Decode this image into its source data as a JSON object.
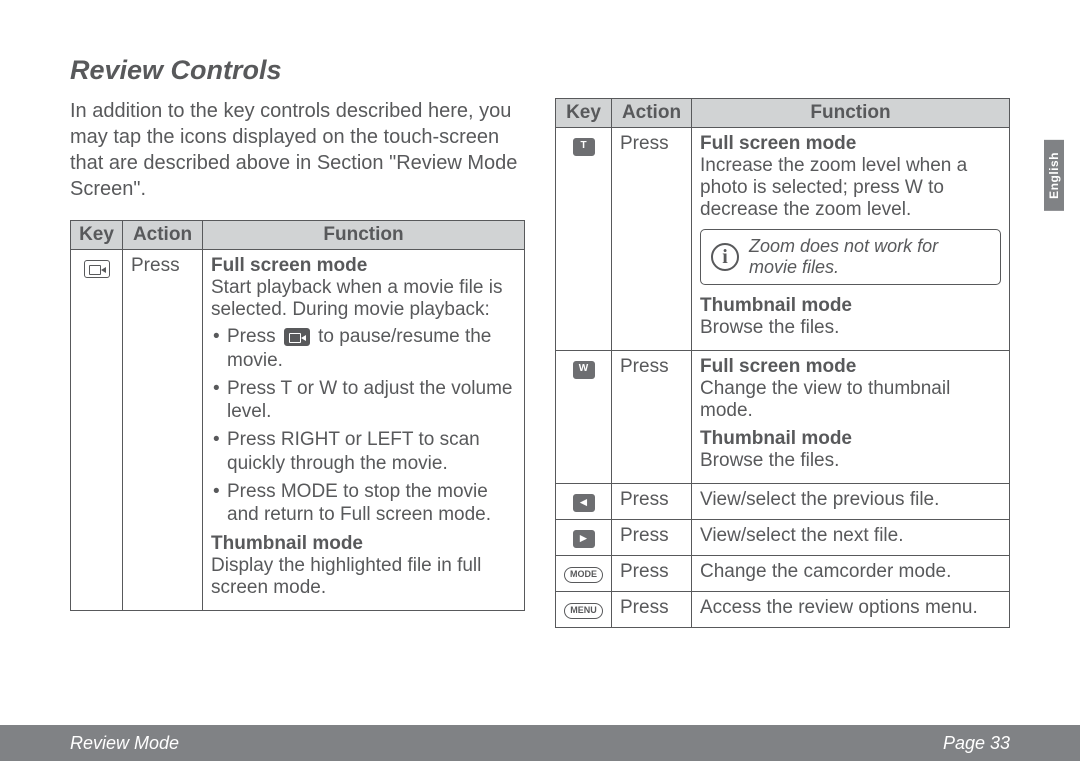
{
  "title": "Review Controls",
  "intro": "In addition to the key controls described here, you may tap the icons displayed on the touch-screen that are described above in Section \"Review Mode Screen\".",
  "headers": {
    "key": "Key",
    "action": "Action",
    "function": "Function"
  },
  "left_rows": [
    {
      "icon": "cam",
      "action": "Press",
      "blocks": [
        {
          "title": "Full screen mode",
          "text": "Start playback when a movie file is selected. During movie playback:",
          "bullets": [
            {
              "pre": "Press ",
              "icon": "cam-dark",
              "post": " to pause/resume the movie."
            },
            {
              "text": "Press T or W to adjust the volume level."
            },
            {
              "text": "Press RIGHT or LEFT to scan quickly through the movie."
            },
            {
              "text": "Press MODE to stop the movie and return to Full screen mode."
            }
          ]
        },
        {
          "title": "Thumbnail mode",
          "text": "Display the highlighted file in full screen mode."
        }
      ]
    }
  ],
  "right_rows": [
    {
      "icon": "T",
      "icon_style": "dark",
      "action": "Press",
      "blocks": [
        {
          "title": "Full screen mode",
          "text": "Increase the zoom level when a photo is selected; press W to decrease the zoom level.",
          "note": "Zoom does not work for movie files."
        },
        {
          "title": "Thumbnail mode",
          "text": "Browse the files."
        }
      ]
    },
    {
      "icon": "W",
      "icon_style": "dark",
      "action": "Press",
      "blocks": [
        {
          "title": "Full screen mode",
          "text": "Change the view to thumbnail mode."
        },
        {
          "title": "Thumbnail mode",
          "text": "Browse the files."
        }
      ]
    },
    {
      "icon": "◄",
      "icon_style": "arrow dark",
      "action": "Press",
      "blocks": [
        {
          "text": "View/select the previous file."
        }
      ]
    },
    {
      "icon": "►",
      "icon_style": "arrow dark",
      "action": "Press",
      "blocks": [
        {
          "text": "View/select the next file."
        }
      ]
    },
    {
      "icon": "MODE",
      "icon_style": "pill",
      "action": "Press",
      "blocks": [
        {
          "text": "Change the camcorder mode."
        }
      ]
    },
    {
      "icon": "MENU",
      "icon_style": "pill",
      "action": "Press",
      "blocks": [
        {
          "text": "Access the review options menu."
        }
      ]
    }
  ],
  "footer": {
    "left": "Review Mode",
    "right": "Page 33"
  },
  "side_tab": "English",
  "colors": {
    "text": "#58595b",
    "header_bg": "#d1d3d4",
    "footer_bg": "#808285",
    "border": "#58595b"
  }
}
